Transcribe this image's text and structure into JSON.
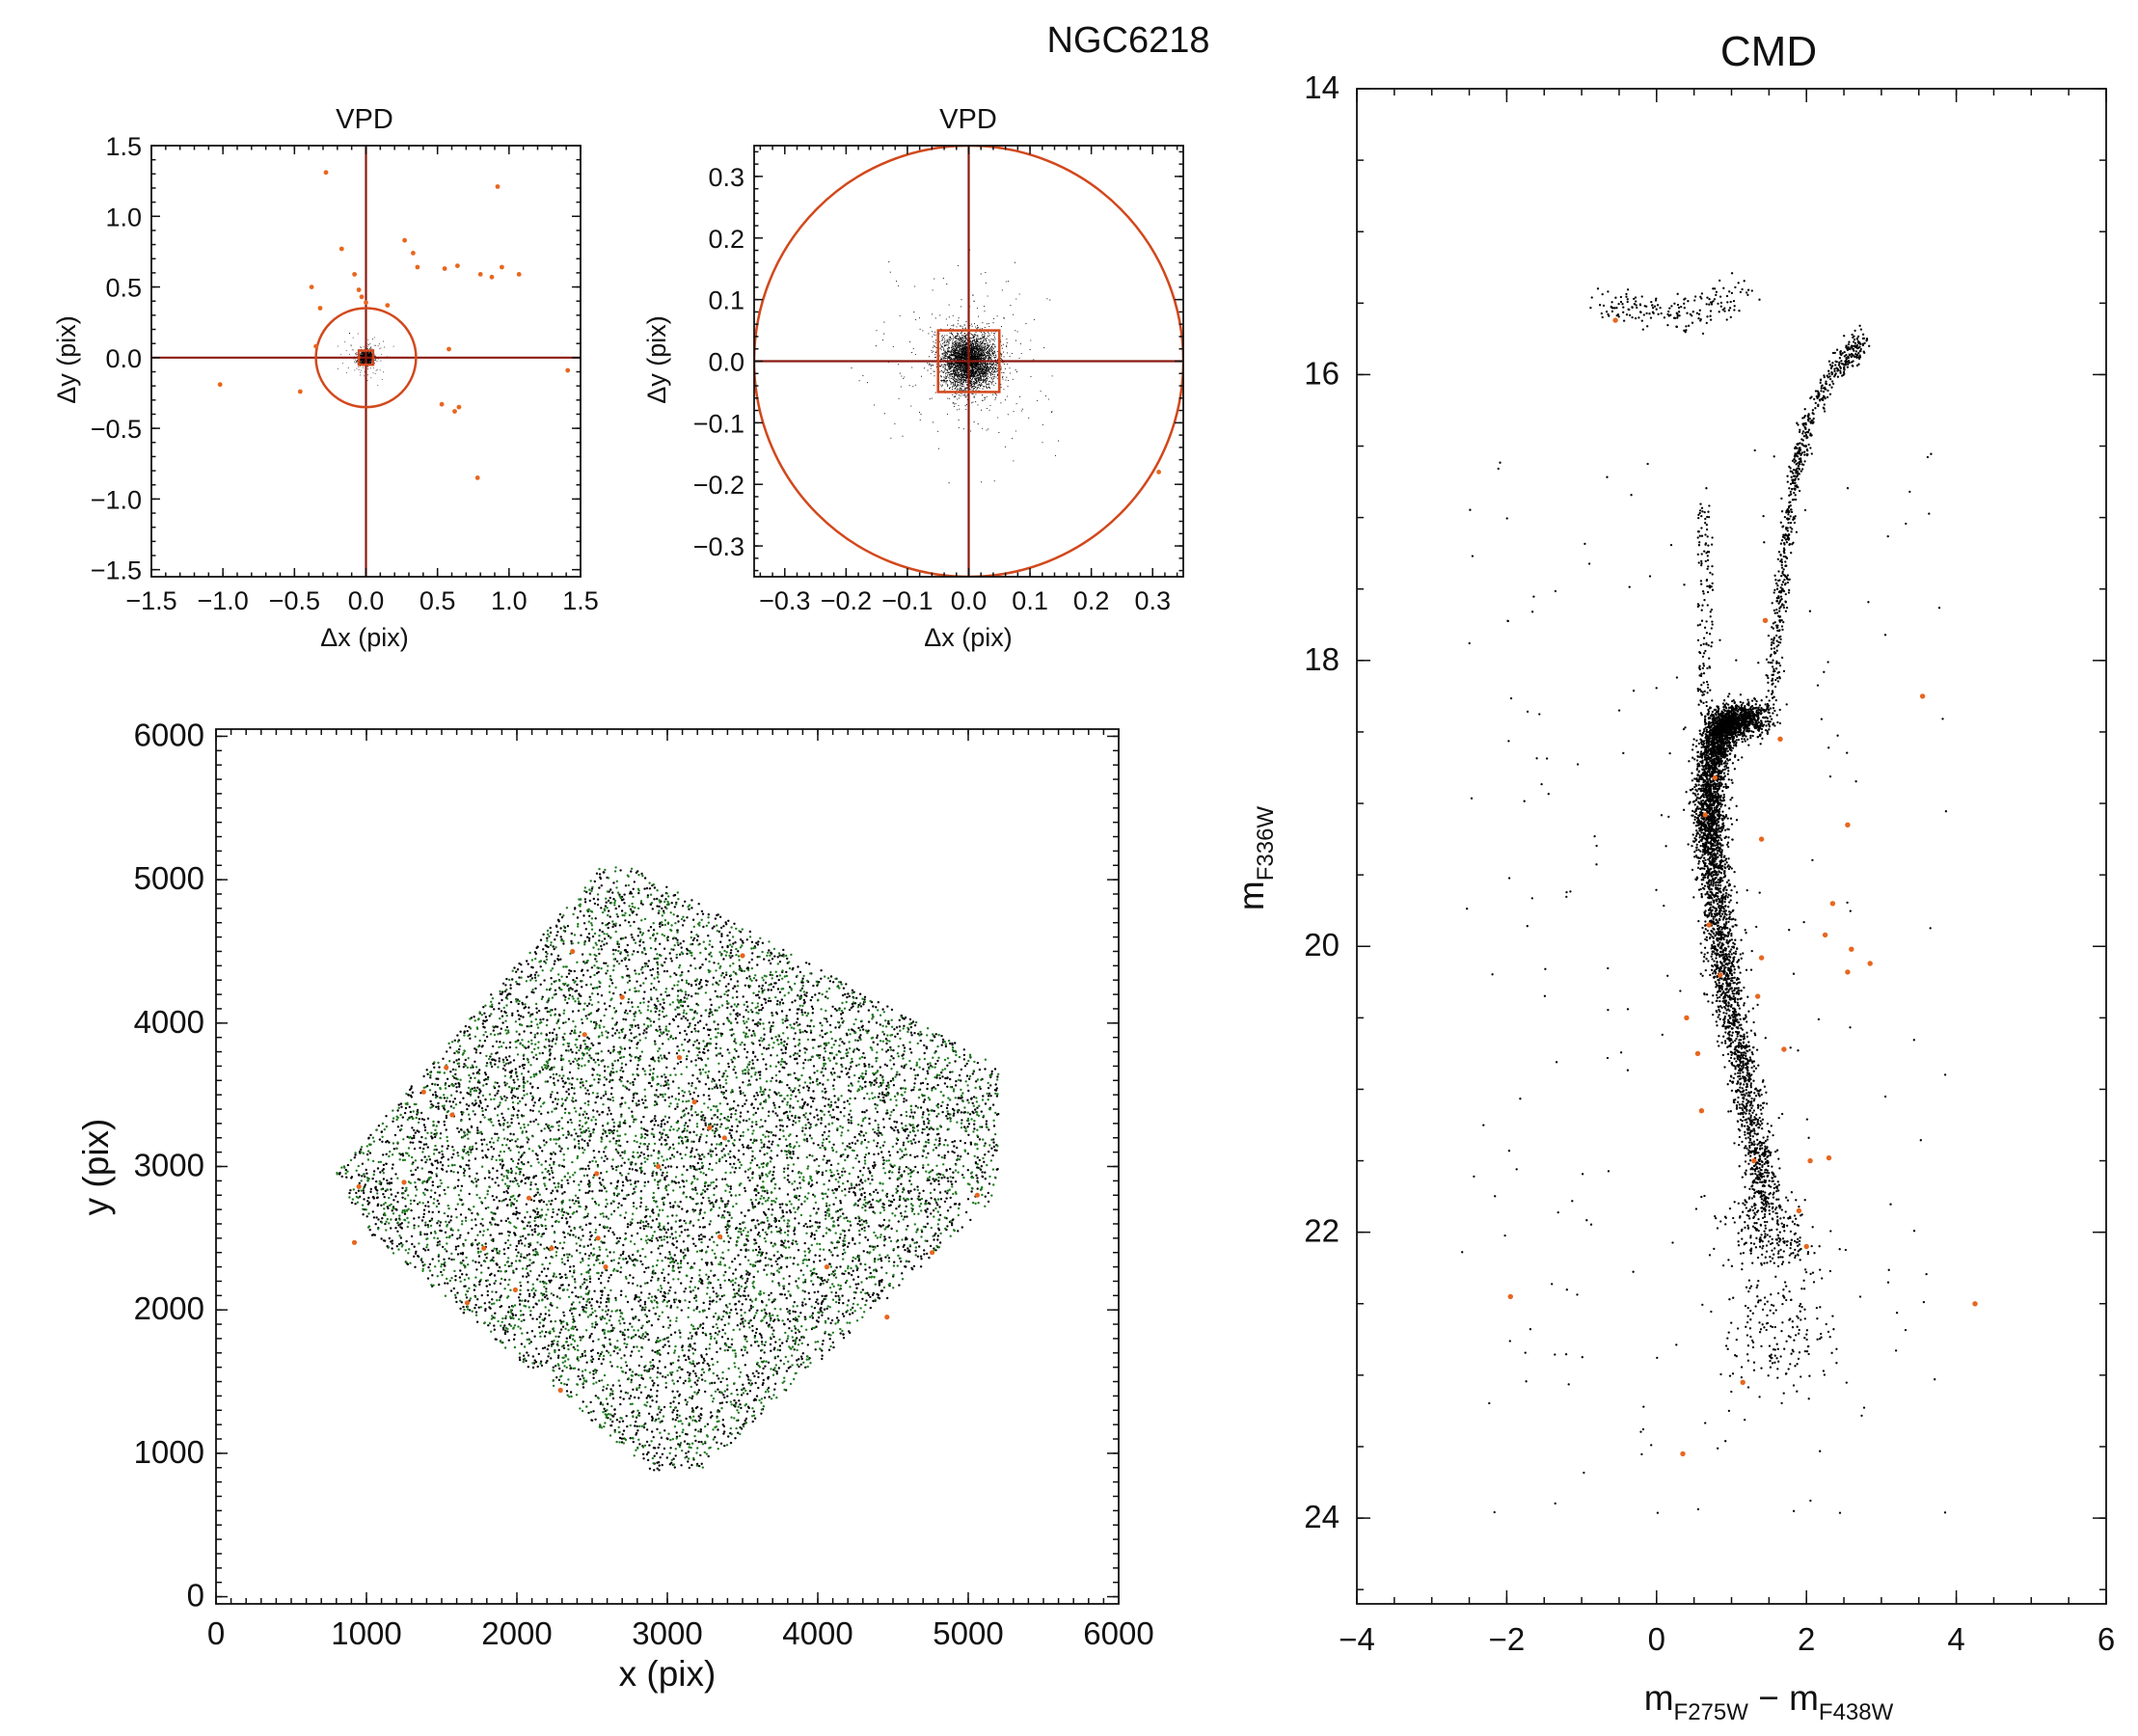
{
  "figure": {
    "title": "NGC6218"
  },
  "colors": {
    "axes": "#111111",
    "cluster_points": "#000000",
    "field_points": "#e8661e",
    "selection": "#d2481c",
    "crosshair": "#8b1a10",
    "xy_alt_points": "#1f7a1f"
  },
  "chart_data": [
    {
      "id": "vpd_wide",
      "type": "scatter",
      "title": "VPD",
      "xlabel": "Δx (pix)",
      "ylabel": "Δy (pix)",
      "xlim": [
        -1.5,
        1.5
      ],
      "ylim": [
        -1.55,
        1.5
      ],
      "xticks": [
        -1.5,
        -1.0,
        -0.5,
        0.0,
        0.5,
        1.0,
        1.5
      ],
      "xtick_labels": [
        "−1.5",
        "−1.0",
        "−0.5",
        "0.0",
        "0.5",
        "1.0",
        "1.5"
      ],
      "yticks": [
        -1.5,
        -1.0,
        -0.5,
        0.0,
        0.5,
        1.0,
        1.5
      ],
      "ytick_labels": [
        "−1.5",
        "−1.0",
        "−0.5",
        "0.0",
        "0.5",
        "1.0",
        "1.5"
      ],
      "overlays": {
        "crosshair": [
          0,
          0
        ],
        "circle_radius": 0.35,
        "box_halfwidth": 0.05
      },
      "series": [
        {
          "role": "cluster",
          "color": "black",
          "n": 1300,
          "center": [
            0,
            0
          ],
          "sigma": 0.025,
          "halo_sigma": 0.08
        },
        {
          "role": "field",
          "color": "orange",
          "points": [
            [
              -0.28,
              1.31
            ],
            [
              0.92,
              1.21
            ],
            [
              -0.17,
              0.77
            ],
            [
              0.27,
              0.83
            ],
            [
              0.33,
              0.74
            ],
            [
              0.36,
              0.64
            ],
            [
              0.55,
              0.63
            ],
            [
              0.64,
              0.65
            ],
            [
              0.8,
              0.59
            ],
            [
              0.88,
              0.57
            ],
            [
              0.95,
              0.64
            ],
            [
              1.07,
              0.59
            ],
            [
              -0.08,
              0.59
            ],
            [
              -0.38,
              0.5
            ],
            [
              -0.05,
              0.48
            ],
            [
              -0.03,
              0.43
            ],
            [
              0.0,
              0.39
            ],
            [
              0.15,
              0.37
            ],
            [
              0.58,
              0.06
            ],
            [
              1.41,
              -0.09
            ],
            [
              -1.02,
              -0.19
            ],
            [
              -0.46,
              -0.24
            ],
            [
              0.53,
              -0.33
            ],
            [
              0.62,
              -0.38
            ],
            [
              0.65,
              -0.35
            ],
            [
              0.78,
              -0.85
            ],
            [
              -0.32,
              0.35
            ],
            [
              -0.35,
              0.08
            ]
          ]
        }
      ]
    },
    {
      "id": "vpd_zoom",
      "type": "scatter",
      "title": "VPD",
      "xlabel": "Δx (pix)",
      "ylabel": "Δy (pix)",
      "xlim": [
        -0.35,
        0.35
      ],
      "ylim": [
        -0.35,
        0.35
      ],
      "xticks": [
        -0.3,
        -0.2,
        -0.1,
        0.0,
        0.1,
        0.2,
        0.3
      ],
      "xtick_labels": [
        "−0.3",
        "−0.2",
        "−0.1",
        "0.0",
        "0.1",
        "0.2",
        "0.3"
      ],
      "yticks": [
        -0.3,
        -0.2,
        -0.1,
        0.0,
        0.1,
        0.2,
        0.3
      ],
      "ytick_labels": [
        "−0.3",
        "−0.2",
        "−0.1",
        "0.0",
        "0.1",
        "0.2",
        "0.3"
      ],
      "overlays": {
        "crosshair": [
          0,
          0
        ],
        "circle_radius": 0.35,
        "box_halfwidth": 0.05
      },
      "series": [
        {
          "role": "cluster",
          "color": "black",
          "n": 4000,
          "center": [
            0,
            0
          ],
          "sigma": 0.022,
          "halo_sigma": 0.07
        },
        {
          "role": "field",
          "color": "orange",
          "points": [
            [
              0.31,
              -0.18
            ]
          ]
        }
      ]
    },
    {
      "id": "xy_map",
      "type": "scatter",
      "title": "",
      "xlabel": "x (pix)",
      "ylabel": "y (pix)",
      "xlim": [
        0,
        6000
      ],
      "ylim": [
        -50,
        6050
      ],
      "xticks": [
        0,
        1000,
        2000,
        3000,
        4000,
        5000,
        6000
      ],
      "xtick_labels": [
        "0",
        "1000",
        "2000",
        "3000",
        "4000",
        "5000",
        "6000"
      ],
      "yticks": [
        0,
        1000,
        2000,
        3000,
        4000,
        5000,
        6000
      ],
      "ytick_labels": [
        "0",
        "1000",
        "2000",
        "3000",
        "4000",
        "5000",
        "6000"
      ],
      "footprint": [
        [
          2750,
          5100
        ],
        [
          5200,
          3700
        ],
        [
          5200,
          2800
        ],
        [
          3250,
          900
        ],
        [
          2900,
          870
        ],
        [
          1000,
          2550
        ],
        [
          800,
          2950
        ],
        [
          2550,
          5080
        ]
      ],
      "series": [
        {
          "role": "cluster",
          "color": "black",
          "n": 5500
        },
        {
          "role": "cluster_alt",
          "color": "green",
          "n": 4000
        },
        {
          "role": "field",
          "color": "orange",
          "points": [
            [
              2370,
              4500
            ],
            [
              3500,
              4470
            ],
            [
              2700,
              4180
            ],
            [
              2450,
              3920
            ],
            [
              3080,
              3760
            ],
            [
              1530,
              3690
            ],
            [
              1380,
              3520
            ],
            [
              3180,
              3450
            ],
            [
              1570,
              3360
            ],
            [
              3280,
              3270
            ],
            [
              3380,
              3200
            ],
            [
              2940,
              3000
            ],
            [
              2530,
              2950
            ],
            [
              950,
              2860
            ],
            [
              1250,
              2890
            ],
            [
              2080,
              2780
            ],
            [
              5060,
              2800
            ],
            [
              920,
              2470
            ],
            [
              1780,
              2430
            ],
            [
              2230,
              2430
            ],
            [
              2540,
              2500
            ],
            [
              3350,
              2510
            ],
            [
              4760,
              2400
            ],
            [
              4060,
              2300
            ],
            [
              2590,
              2300
            ],
            [
              1990,
              2140
            ],
            [
              1670,
              2050
            ],
            [
              4460,
              1950
            ],
            [
              2290,
              1440
            ]
          ]
        }
      ]
    },
    {
      "id": "cmd",
      "type": "scatter",
      "title": "CMD",
      "xlabel": "m_F275W − m_F438W",
      "ylabel": "m_F336W",
      "xlim": [
        -4,
        6
      ],
      "ylim": [
        24.6,
        14.0
      ],
      "xticks": [
        -4,
        -2,
        0,
        2,
        4,
        6
      ],
      "xtick_labels": [
        "−4",
        "−2",
        "0",
        "2",
        "4",
        "6"
      ],
      "yticks": [
        14,
        16,
        18,
        20,
        22,
        24
      ],
      "ytick_labels": [
        "14",
        "16",
        "18",
        "20",
        "22",
        "24"
      ],
      "sequence_ridge": [
        [
          1.7,
          22.6
        ],
        [
          1.62,
          22.3
        ],
        [
          1.5,
          21.9
        ],
        [
          1.33,
          21.4
        ],
        [
          1.12,
          20.8
        ],
        [
          0.95,
          20.3
        ],
        [
          0.82,
          19.8
        ],
        [
          0.72,
          19.3
        ],
        [
          0.7,
          19.0
        ],
        [
          0.74,
          18.7
        ],
        [
          0.85,
          18.48
        ],
        [
          1.0,
          18.42
        ],
        [
          1.4,
          18.4
        ]
      ],
      "rgb_ridge": [
        [
          1.5,
          18.4
        ],
        [
          1.6,
          17.8
        ],
        [
          1.72,
          17.2
        ],
        [
          1.85,
          16.7
        ],
        [
          2.05,
          16.3
        ],
        [
          2.4,
          15.95
        ],
        [
          2.8,
          15.75
        ]
      ],
      "hb_ridge": [
        [
          -0.7,
          15.55
        ],
        [
          -0.35,
          15.5
        ],
        [
          0.0,
          15.57
        ],
        [
          0.45,
          15.57
        ],
        [
          0.8,
          15.5
        ],
        [
          1.2,
          15.45
        ]
      ],
      "series": [
        {
          "role": "cluster",
          "color": "black",
          "n": 6000
        },
        {
          "role": "field",
          "color": "orange",
          "points": [
            [
              -0.55,
              15.62
            ],
            [
              1.45,
              17.72
            ],
            [
              3.55,
              18.25
            ],
            [
              1.65,
              18.55
            ],
            [
              0.78,
              18.82
            ],
            [
              0.65,
              19.08
            ],
            [
              1.4,
              19.25
            ],
            [
              2.55,
              19.15
            ],
            [
              2.35,
              19.7
            ],
            [
              2.25,
              19.92
            ],
            [
              2.6,
              20.02
            ],
            [
              2.85,
              20.12
            ],
            [
              2.55,
              20.18
            ],
            [
              0.7,
              19.85
            ],
            [
              0.85,
              20.2
            ],
            [
              1.4,
              20.08
            ],
            [
              1.35,
              20.35
            ],
            [
              0.4,
              20.5
            ],
            [
              0.55,
              20.75
            ],
            [
              1.7,
              20.72
            ],
            [
              0.6,
              21.15
            ],
            [
              1.3,
              21.5
            ],
            [
              2.05,
              21.5
            ],
            [
              2.3,
              21.48
            ],
            [
              1.9,
              21.85
            ],
            [
              2.0,
              22.1
            ],
            [
              -1.95,
              22.45
            ],
            [
              4.25,
              22.5
            ],
            [
              1.15,
              23.05
            ],
            [
              0.35,
              23.55
            ]
          ]
        }
      ]
    }
  ]
}
